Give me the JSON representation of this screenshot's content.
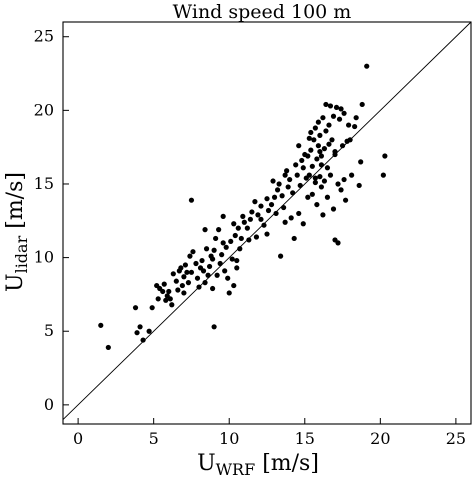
{
  "chart_data": {
    "type": "scatter",
    "title": "Wind speed 100 m",
    "xlabel": {
      "base": "U",
      "sub": "WRF",
      "unit": " [m/s]"
    },
    "ylabel": {
      "base": "U",
      "sub": "lidar",
      "unit": " [m/s]"
    },
    "xlim": [
      -1,
      26
    ],
    "ylim": [
      -1.3,
      26
    ],
    "xticks": [
      0,
      5,
      10,
      15,
      20,
      25
    ],
    "yticks": [
      0,
      5,
      10,
      15,
      20,
      25
    ],
    "xtick_labels": [
      "0",
      "5",
      "10",
      "15",
      "20",
      "25"
    ],
    "ytick_labels": [
      "0",
      "5",
      "10",
      "15",
      "20",
      "25"
    ],
    "grid": false,
    "reference_line": "y = x",
    "marker_color": "#000000",
    "points": [
      [
        1.5,
        5.4
      ],
      [
        2.0,
        3.9
      ],
      [
        3.8,
        6.6
      ],
      [
        3.9,
        4.9
      ],
      [
        4.3,
        4.4
      ],
      [
        4.7,
        5.0
      ],
      [
        4.9,
        6.6
      ],
      [
        5.2,
        8.1
      ],
      [
        5.4,
        7.9
      ],
      [
        5.6,
        7.7
      ],
      [
        5.7,
        8.2
      ],
      [
        5.8,
        7.1
      ],
      [
        5.9,
        7.4
      ],
      [
        6.0,
        7.7
      ],
      [
        6.1,
        7.2
      ],
      [
        6.3,
        8.9
      ],
      [
        6.5,
        8.4
      ],
      [
        6.6,
        7.8
      ],
      [
        6.7,
        9.1
      ],
      [
        6.8,
        9.3
      ],
      [
        6.9,
        8.1
      ],
      [
        7.0,
        8.7
      ],
      [
        7.1,
        9.5
      ],
      [
        7.2,
        9.0
      ],
      [
        7.3,
        8.3
      ],
      [
        7.4,
        10.1
      ],
      [
        7.5,
        13.9
      ],
      [
        7.5,
        9.0
      ],
      [
        7.6,
        10.4
      ],
      [
        7.8,
        9.6
      ],
      [
        7.9,
        8.6
      ],
      [
        8.0,
        8.0
      ],
      [
        8.1,
        9.3
      ],
      [
        8.2,
        9.8
      ],
      [
        8.3,
        9.1
      ],
      [
        8.4,
        11.9
      ],
      [
        8.4,
        8.3
      ],
      [
        8.5,
        10.6
      ],
      [
        8.6,
        8.8
      ],
      [
        8.7,
        9.4
      ],
      [
        8.8,
        10.1
      ],
      [
        8.9,
        9.9
      ],
      [
        9.0,
        10.5
      ],
      [
        9.0,
        5.3
      ],
      [
        9.1,
        11.3
      ],
      [
        9.2,
        8.8
      ],
      [
        9.3,
        11.9
      ],
      [
        9.4,
        9.6
      ],
      [
        9.5,
        10.2
      ],
      [
        9.6,
        11.0
      ],
      [
        9.7,
        9.1
      ],
      [
        9.8,
        10.7
      ],
      [
        9.9,
        8.6
      ],
      [
        10.0,
        7.6
      ],
      [
        10.1,
        11.1
      ],
      [
        10.2,
        9.9
      ],
      [
        10.3,
        8.1
      ],
      [
        10.3,
        12.3
      ],
      [
        10.4,
        11.5
      ],
      [
        10.5,
        9.8
      ],
      [
        10.6,
        12.0
      ],
      [
        10.7,
        10.6
      ],
      [
        10.8,
        11.3
      ],
      [
        10.9,
        12.8
      ],
      [
        11.0,
        12.4
      ],
      [
        11.2,
        12.0
      ],
      [
        11.3,
        11.2
      ],
      [
        11.4,
        12.6
      ],
      [
        11.5,
        13.1
      ],
      [
        11.7,
        13.8
      ],
      [
        11.9,
        12.9
      ],
      [
        12.1,
        13.5
      ],
      [
        12.3,
        12.2
      ],
      [
        12.5,
        14.0
      ],
      [
        12.6,
        13.2
      ],
      [
        12.8,
        13.6
      ],
      [
        12.9,
        15.2
      ],
      [
        13.0,
        14.1
      ],
      [
        13.1,
        13.0
      ],
      [
        13.2,
        14.6
      ],
      [
        13.3,
        15.0
      ],
      [
        13.4,
        10.1
      ],
      [
        13.5,
        14.2
      ],
      [
        13.6,
        13.4
      ],
      [
        13.7,
        15.6
      ],
      [
        13.8,
        15.9
      ],
      [
        13.9,
        14.8
      ],
      [
        14.0,
        15.3
      ],
      [
        14.1,
        12.7
      ],
      [
        14.2,
        14.4
      ],
      [
        14.3,
        11.3
      ],
      [
        14.4,
        16.3
      ],
      [
        14.5,
        15.6
      ],
      [
        14.6,
        13.0
      ],
      [
        14.7,
        14.9
      ],
      [
        14.8,
        16.6
      ],
      [
        14.9,
        16.1
      ],
      [
        14.9,
        12.3
      ],
      [
        15.0,
        17.0
      ],
      [
        15.1,
        15.4
      ],
      [
        15.2,
        16.9
      ],
      [
        15.2,
        14.1
      ],
      [
        15.3,
        15.6
      ],
      [
        15.4,
        17.3
      ],
      [
        15.4,
        18.5
      ],
      [
        15.5,
        16.2
      ],
      [
        15.5,
        14.3
      ],
      [
        15.6,
        18.0
      ],
      [
        15.7,
        15.1
      ],
      [
        15.7,
        18.8
      ],
      [
        15.8,
        16.7
      ],
      [
        15.8,
        13.6
      ],
      [
        15.9,
        17.6
      ],
      [
        15.9,
        19.2
      ],
      [
        16.0,
        15.5
      ],
      [
        16.0,
        18.3
      ],
      [
        16.1,
        16.9
      ],
      [
        16.1,
        14.8
      ],
      [
        16.2,
        19.5
      ],
      [
        16.2,
        12.9
      ],
      [
        16.3,
        17.4
      ],
      [
        16.3,
        15.2
      ],
      [
        16.4,
        18.6
      ],
      [
        16.4,
        20.4
      ],
      [
        16.5,
        16.1
      ],
      [
        16.5,
        14.1
      ],
      [
        16.6,
        19.0
      ],
      [
        16.6,
        17.7
      ],
      [
        16.7,
        20.3
      ],
      [
        16.7,
        15.6
      ],
      [
        16.8,
        18.0
      ],
      [
        16.9,
        19.6
      ],
      [
        16.9,
        13.3
      ],
      [
        17.0,
        17.2
      ],
      [
        17.0,
        11.2
      ],
      [
        17.1,
        20.2
      ],
      [
        17.2,
        15.0
      ],
      [
        17.2,
        11.0
      ],
      [
        17.3,
        19.4
      ],
      [
        17.4,
        14.6
      ],
      [
        17.4,
        20.1
      ],
      [
        17.5,
        17.6
      ],
      [
        17.6,
        19.8
      ],
      [
        17.6,
        15.3
      ],
      [
        17.7,
        13.9
      ],
      [
        17.8,
        17.9
      ],
      [
        17.9,
        19.0
      ],
      [
        18.0,
        18.0
      ],
      [
        18.1,
        15.6
      ],
      [
        18.3,
        18.9
      ],
      [
        18.4,
        19.5
      ],
      [
        18.6,
        14.9
      ],
      [
        18.7,
        16.5
      ],
      [
        18.8,
        20.4
      ],
      [
        19.1,
        23.0
      ],
      [
        20.2,
        15.6
      ],
      [
        20.3,
        16.9
      ],
      [
        15.7,
        15.4
      ],
      [
        16.0,
        17.2
      ],
      [
        12.1,
        12.6
      ],
      [
        11.8,
        11.4
      ],
      [
        10.5,
        9.3
      ],
      [
        9.6,
        12.8
      ],
      [
        6.2,
        6.8
      ],
      [
        5.3,
        7.2
      ],
      [
        4.1,
        5.3
      ],
      [
        7.0,
        7.6
      ],
      [
        8.9,
        7.9
      ],
      [
        12.5,
        11.6
      ],
      [
        13.7,
        12.4
      ],
      [
        14.6,
        17.6
      ],
      [
        15.3,
        18.1
      ],
      [
        17.0,
        17.0
      ],
      [
        16.1,
        16.3
      ]
    ]
  }
}
